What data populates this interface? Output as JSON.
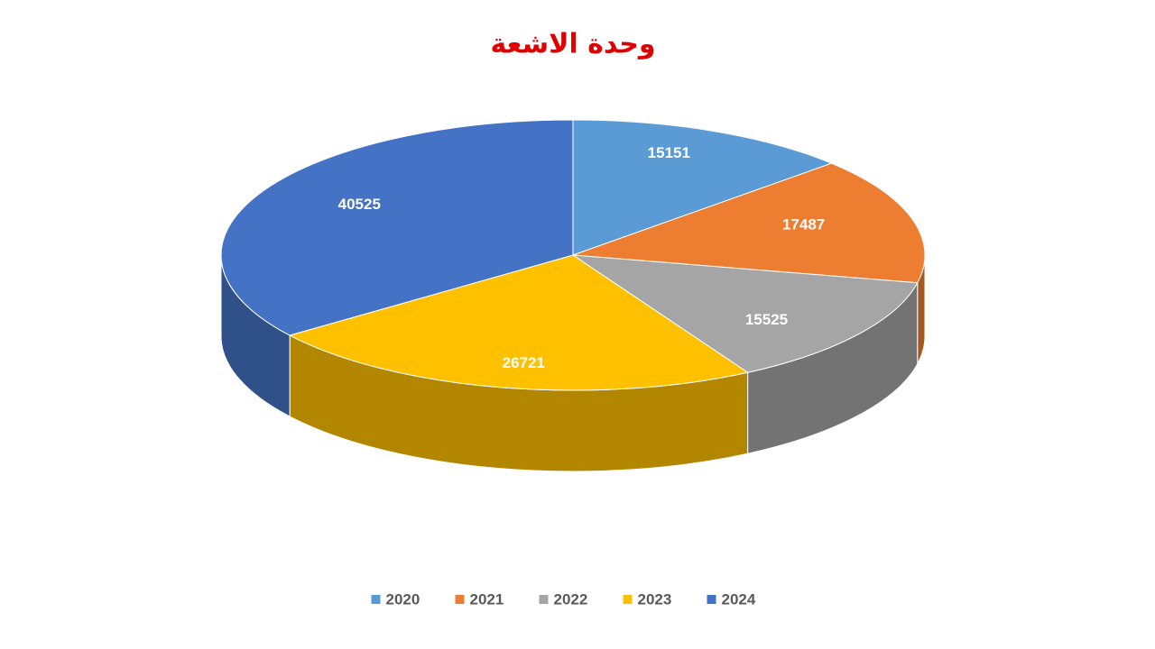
{
  "chart_data": {
    "type": "pie3d",
    "title": "وحدة الاشعة",
    "categories": [
      "2020",
      "2021",
      "2022",
      "2023",
      "2024"
    ],
    "values": [
      15151,
      17487,
      15525,
      26721,
      40525
    ],
    "colors": [
      "#5b9bd5",
      "#ed7d31",
      "#a5a5a5",
      "#ffc000",
      "#4472c4"
    ],
    "legend": "bottom"
  }
}
